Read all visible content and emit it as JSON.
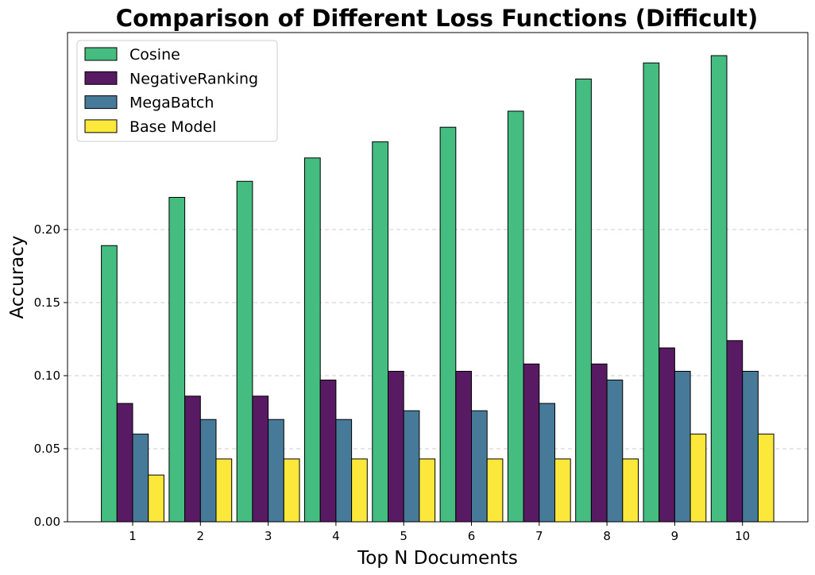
{
  "chart_data": {
    "type": "bar",
    "title": "Comparison of Different Loss Functions (Difficult)",
    "xlabel": "Top N Documents",
    "ylabel": "Accuracy",
    "categories": [
      "1",
      "2",
      "3",
      "4",
      "5",
      "6",
      "7",
      "8",
      "9",
      "10"
    ],
    "y_ticks": [
      "0.00",
      "0.05",
      "0.10",
      "0.15",
      "0.20"
    ],
    "ylim": [
      0,
      0.33
    ],
    "grid": "horizontal dashed",
    "legend_position": "upper-left",
    "series": [
      {
        "name": "Cosine",
        "color": "#45bd80",
        "values": [
          0.189,
          0.222,
          0.233,
          0.249,
          0.26,
          0.27,
          0.281,
          0.303,
          0.314,
          0.319
        ]
      },
      {
        "name": "NegativeRanking",
        "color": "#581a63",
        "values": [
          0.081,
          0.086,
          0.086,
          0.097,
          0.103,
          0.103,
          0.108,
          0.108,
          0.119,
          0.124
        ]
      },
      {
        "name": "MegaBatch",
        "color": "#477a98",
        "values": [
          0.06,
          0.07,
          0.07,
          0.07,
          0.076,
          0.076,
          0.081,
          0.097,
          0.103,
          0.103
        ]
      },
      {
        "name": "Base Model",
        "color": "#fbe83b",
        "values": [
          0.032,
          0.043,
          0.043,
          0.043,
          0.043,
          0.043,
          0.043,
          0.043,
          0.06,
          0.06
        ]
      }
    ]
  }
}
